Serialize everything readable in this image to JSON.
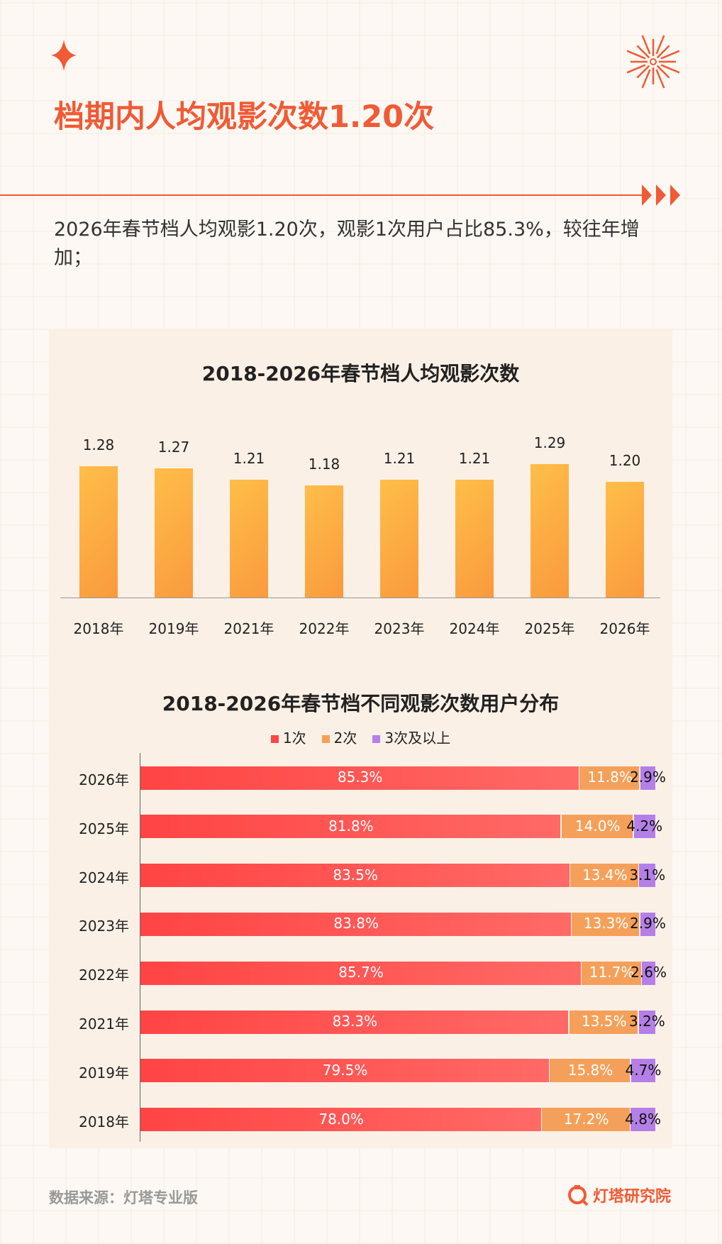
{
  "header": {
    "title": "档期内人均观影次数1.20次",
    "subtitle": "2026年春节档人均观影1.20次，观影1次用户占比85.3%，较往年增加；"
  },
  "colors": {
    "accent": "#f05a35",
    "bar_gold": "#ffbb45",
    "bar_orange": "#f9a040",
    "seg1": "#ff4646",
    "seg2": "#f5a05a",
    "seg3": "#b57fe8"
  },
  "chart_data": [
    {
      "type": "bar",
      "title": "2018-2026年春节档人均观影次数",
      "categories": [
        "2018年",
        "2019年",
        "2021年",
        "2022年",
        "2023年",
        "2024年",
        "2025年",
        "2026年"
      ],
      "values": [
        1.28,
        1.27,
        1.21,
        1.18,
        1.21,
        1.21,
        1.29,
        1.2
      ],
      "labels": [
        "1.28",
        "1.27",
        "1.21",
        "1.18",
        "1.21",
        "1.21",
        "1.29",
        "1.20"
      ],
      "xlabel": "",
      "ylabel": "",
      "ylim": [
        0.6,
        1.35
      ],
      "grid": false
    },
    {
      "type": "bar",
      "orientation": "horizontal",
      "stacked": true,
      "title": "2018-2026年春节档不同观影次数用户分布",
      "categories": [
        "2026年",
        "2025年",
        "2024年",
        "2023年",
        "2022年",
        "2021年",
        "2019年",
        "2018年"
      ],
      "series": [
        {
          "name": "1次",
          "values": [
            85.3,
            81.8,
            83.5,
            83.8,
            85.7,
            83.3,
            79.5,
            78.0
          ],
          "labels": [
            "85.3%",
            "81.8%",
            "83.5%",
            "83.8%",
            "85.7%",
            "83.3%",
            "79.5%",
            "78.0%"
          ]
        },
        {
          "name": "2次",
          "values": [
            11.8,
            14.0,
            13.4,
            13.3,
            11.7,
            13.5,
            15.8,
            17.2
          ],
          "labels": [
            "11.8%",
            "14.0%",
            "13.4%",
            "13.3%",
            "11.7%",
            "13.5%",
            "15.8%",
            "17.2%"
          ]
        },
        {
          "name": "3次及以上",
          "values": [
            2.9,
            4.2,
            3.1,
            2.9,
            2.6,
            3.2,
            4.7,
            4.8
          ],
          "labels": [
            "2.9%",
            "4.2%",
            "3.1%",
            "2.9%",
            "2.6%",
            "3.2%",
            "4.7%",
            "4.8%"
          ]
        }
      ],
      "xlim": [
        0,
        100
      ],
      "legend": "top",
      "grid": false
    }
  ],
  "footer": {
    "source": "数据来源：灯塔专业版",
    "logo": "灯塔研究院"
  }
}
